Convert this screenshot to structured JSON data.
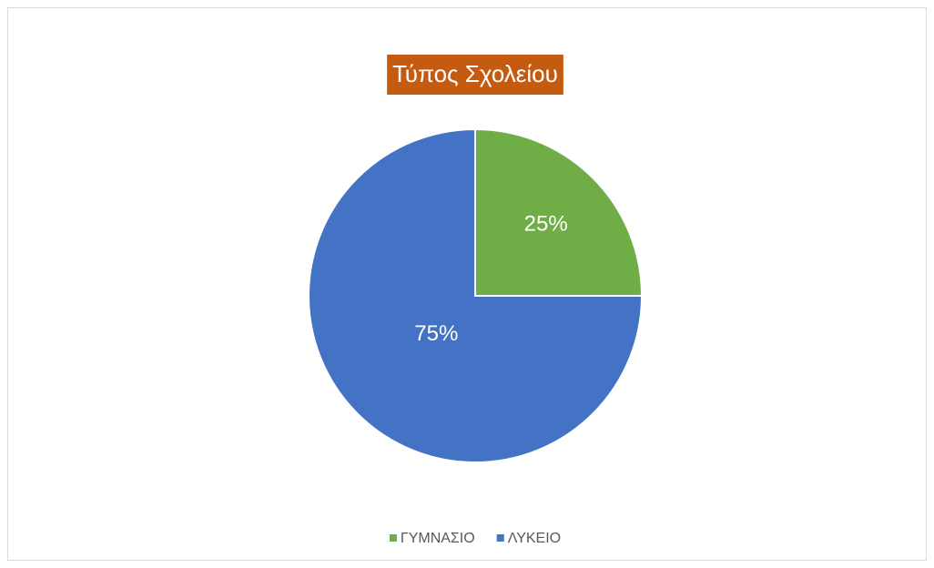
{
  "chart_data": {
    "type": "pie",
    "title": "Τύπος Σχολείου",
    "categories": [
      "ΓΥΜΝΑΣΙΟ",
      "ΛΥΚΕΙΟ"
    ],
    "values": [
      25,
      75
    ],
    "value_labels": [
      "25%",
      "75%"
    ],
    "colors": [
      "#70ad47",
      "#4472c4"
    ],
    "title_background": "#c55a11",
    "legend": "bottom"
  }
}
